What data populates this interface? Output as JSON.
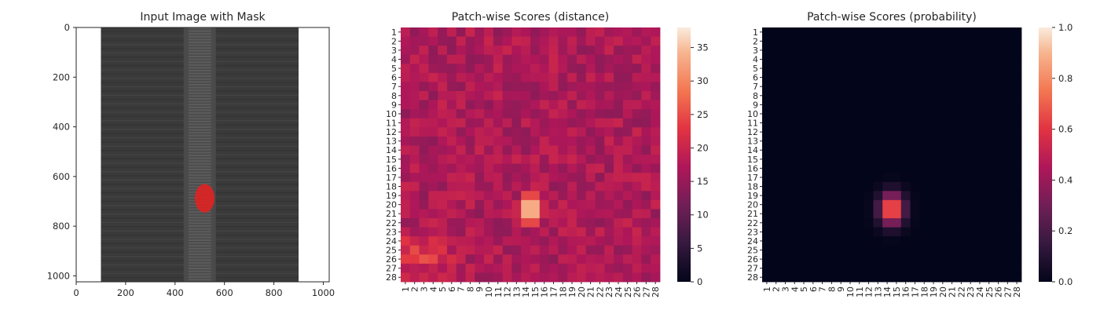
{
  "chart_data": [
    {
      "type": "image",
      "title": "Input Image with Mask",
      "xticks": [
        0,
        200,
        400,
        600,
        800,
        1000
      ],
      "yticks": [
        0,
        200,
        400,
        600,
        800,
        1000
      ],
      "xlim": [
        0,
        1024
      ],
      "ylim": [
        1024,
        0
      ],
      "colors": {
        "background": "#ffffff",
        "fabric": "#3a3a3a",
        "teeth": "#5c5c5c",
        "mask": "#e02222"
      },
      "content": {
        "zipper_fabric_x": [
          100,
          900
        ],
        "zipper_teeth_x": [
          435,
          565
        ],
        "mask_x_range": [
          480,
          560
        ],
        "mask_y_range": [
          630,
          745
        ]
      }
    },
    {
      "type": "heatmap",
      "title": "Patch-wise Scores (distance)",
      "rows": [
        "1",
        "2",
        "3",
        "4",
        "5",
        "6",
        "7",
        "8",
        "9",
        "10",
        "11",
        "12",
        "13",
        "14",
        "15",
        "16",
        "17",
        "18",
        "19",
        "20",
        "21",
        "22",
        "23",
        "24",
        "25",
        "26",
        "27",
        "28"
      ],
      "cols": [
        "1",
        "2",
        "3",
        "4",
        "5",
        "6",
        "7",
        "8",
        "9",
        "10",
        "11",
        "12",
        "13",
        "14",
        "15",
        "16",
        "17",
        "18",
        "19",
        "20",
        "21",
        "22",
        "23",
        "24",
        "25",
        "26",
        "27",
        "28"
      ],
      "colorbar_ticks": [
        0,
        5,
        10,
        15,
        20,
        25,
        30,
        35
      ],
      "vmin": 0,
      "vmax": 38,
      "base_value": 17,
      "hotspot": {
        "row": 20.5,
        "col": 14.5,
        "peak": 37,
        "radius_rows": 1.8,
        "radius_cols": 1.4
      },
      "secondary": {
        "row": 25.5,
        "col": 2.5,
        "peak": 6,
        "radius_rows": 1.5,
        "radius_cols": 2.5
      }
    },
    {
      "type": "heatmap",
      "title": "Patch-wise Scores (probability)",
      "rows": [
        "1",
        "2",
        "3",
        "4",
        "5",
        "6",
        "7",
        "8",
        "9",
        "10",
        "11",
        "12",
        "13",
        "14",
        "15",
        "16",
        "17",
        "18",
        "19",
        "20",
        "21",
        "22",
        "23",
        "24",
        "25",
        "26",
        "27",
        "28"
      ],
      "cols": [
        "1",
        "2",
        "3",
        "4",
        "5",
        "6",
        "7",
        "8",
        "9",
        "10",
        "11",
        "12",
        "13",
        "14",
        "15",
        "16",
        "17",
        "18",
        "19",
        "20",
        "21",
        "22",
        "23",
        "24",
        "25",
        "26",
        "27",
        "28"
      ],
      "colorbar_ticks": [
        "0.0",
        "0.2",
        "0.4",
        "0.6",
        "0.8",
        "1.0"
      ],
      "vmin": 0,
      "vmax": 1,
      "hotspot": {
        "row": 20.5,
        "col": 14.5,
        "peak": 0.8,
        "radius_rows": 1.2,
        "radius_cols": 0.9
      }
    }
  ]
}
